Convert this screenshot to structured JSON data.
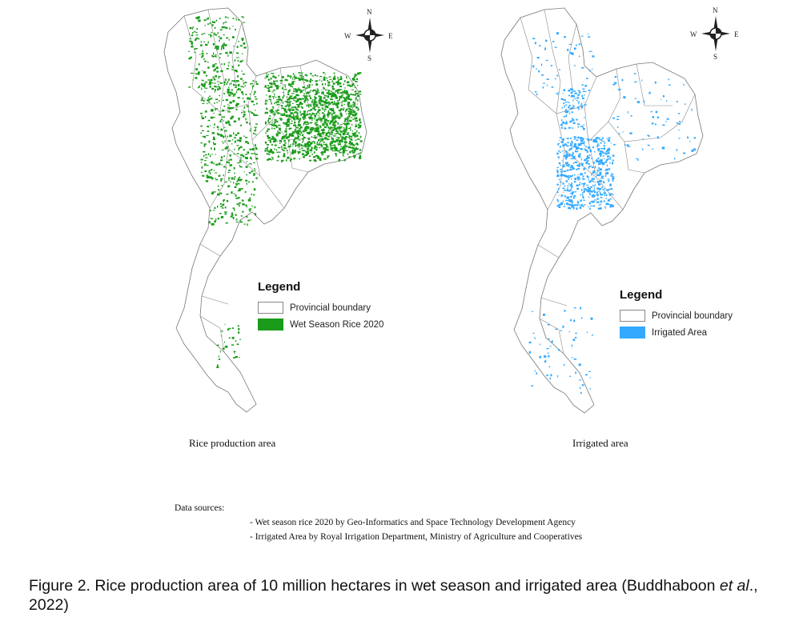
{
  "maps": [
    {
      "legend_title": "Legend",
      "legend_items": [
        {
          "label": "Provincial boundary",
          "color": "#ffffff"
        },
        {
          "label": "Wet Season Rice 2020",
          "color": "#1a9c1a"
        }
      ],
      "caption": "Rice production  area"
    },
    {
      "legend_title": "Legend",
      "legend_items": [
        {
          "label": "Provincial boundary",
          "color": "#ffffff"
        },
        {
          "label": "Irrigated Area",
          "color": "#33aaff"
        }
      ],
      "caption": "Irrigated  area"
    }
  ],
  "compass": {
    "n": "N",
    "s": "S",
    "e": "E",
    "w": "W"
  },
  "sources": {
    "heading": "Data sources:",
    "items": [
      "- Wet season rice 2020 by Geo-Informatics and Space Technology Development Agency",
      "- Irrigated Area by  Royal Irrigation Department, Ministry of Agriculture and Cooperatives"
    ]
  },
  "figure_caption": {
    "main": "Figure 2. Rice production area of 10 million hectares in wet season and irrigated area (Buddhaboon",
    "italic": "et al",
    "tail": "., 2022)"
  },
  "colors": {
    "rice": "#1a9c1a",
    "irrigated": "#33aaff",
    "boundary": "#777777"
  }
}
